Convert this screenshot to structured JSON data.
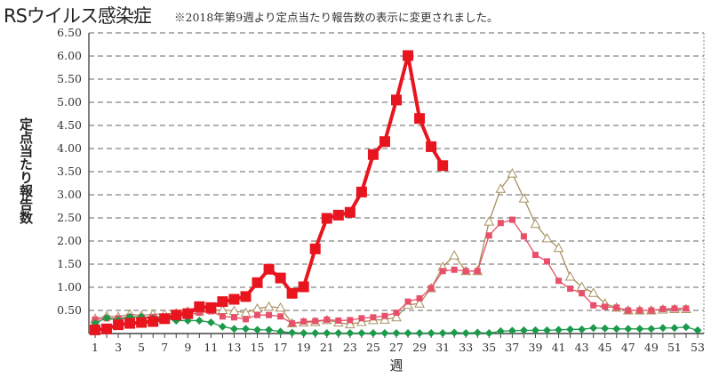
{
  "chart_data": {
    "type": "line",
    "title": "RSウイルス感染症",
    "subtitle": "※2018年第9週より定点当たり報告数の表示に変更されました。",
    "xlabel": "週",
    "ylabel": "定点当たり報告数",
    "xlim": [
      1,
      53
    ],
    "ylim": [
      0,
      6.5
    ],
    "y_ticks": [
      "0.50",
      "1.00",
      "1.50",
      "2.00",
      "2.50",
      "3.00",
      "3.50",
      "4.00",
      "4.50",
      "5.00",
      "5.50",
      "6.00",
      "6.50"
    ],
    "x_ticks": [
      "1",
      "3",
      "5",
      "7",
      "9",
      "11",
      "13",
      "15",
      "17",
      "19",
      "21",
      "23",
      "25",
      "27",
      "29",
      "31",
      "33",
      "35",
      "37",
      "39",
      "41",
      "43",
      "45",
      "47",
      "49",
      "51",
      "53"
    ],
    "grid": "horizontal dashed",
    "series": [
      {
        "style": "tan-triangle",
        "color": "#a89060",
        "values": [
          0.32,
          0.38,
          0.36,
          0.42,
          0.39,
          0.42,
          0.42,
          0.44,
          0.48,
          0.48,
          0.51,
          0.51,
          0.49,
          0.45,
          0.54,
          0.58,
          0.56,
          0.22,
          0.24,
          0.25,
          0.29,
          0.24,
          0.2,
          0.25,
          0.29,
          0.3,
          0.35,
          0.62,
          0.65,
          0.98,
          1.44,
          1.69,
          1.35,
          1.35,
          2.42,
          3.13,
          3.46,
          2.92,
          2.37,
          2.06,
          1.85,
          1.23,
          1.01,
          0.88,
          0.65,
          0.56,
          0.5,
          0.5,
          0.5,
          0.52,
          0.53,
          0.53
        ]
      },
      {
        "style": "pink-square",
        "color": "#e8506a",
        "values": [
          0.3,
          0.33,
          0.33,
          0.36,
          0.35,
          0.36,
          0.37,
          0.4,
          0.42,
          0.45,
          0.48,
          0.37,
          0.35,
          0.31,
          0.4,
          0.4,
          0.37,
          0.22,
          0.26,
          0.27,
          0.3,
          0.28,
          0.29,
          0.33,
          0.35,
          0.38,
          0.45,
          0.69,
          0.76,
          0.98,
          1.35,
          1.38,
          1.35,
          1.35,
          2.12,
          2.39,
          2.46,
          2.1,
          1.7,
          1.56,
          1.14,
          0.97,
          0.87,
          0.61,
          0.58,
          0.56,
          0.5,
          0.5,
          0.5,
          0.53,
          0.54,
          0.54
        ]
      },
      {
        "style": "green-diamond",
        "color": "#1a9a4a",
        "values": [
          0.22,
          0.34,
          0.29,
          0.36,
          0.36,
          0.33,
          0.34,
          0.28,
          0.28,
          0.28,
          0.24,
          0.15,
          0.1,
          0.1,
          0.08,
          0.08,
          0.04,
          0.02,
          0.01,
          0.01,
          0.01,
          0.01,
          0.01,
          0.01,
          0.01,
          0.01,
          0.01,
          0.01,
          0.01,
          0.01,
          0.01,
          0.02,
          0.01,
          0.02,
          0.01,
          0.05,
          0.06,
          0.07,
          0.07,
          0.07,
          0.08,
          0.09,
          0.09,
          0.12,
          0.11,
          0.1,
          0.1,
          0.1,
          0.1,
          0.12,
          0.12,
          0.14,
          0.07
        ]
      },
      {
        "style": "red-bold-square",
        "color": "#e8141e",
        "values": [
          0.08,
          0.1,
          0.19,
          0.22,
          0.24,
          0.26,
          0.32,
          0.4,
          0.43,
          0.58,
          0.56,
          0.69,
          0.74,
          0.8,
          1.1,
          1.39,
          1.2,
          0.87,
          1.01,
          1.83,
          2.49,
          2.56,
          2.62,
          3.06,
          3.87,
          4.15,
          5.05,
          6.01,
          4.65,
          4.04,
          3.63
        ]
      }
    ]
  }
}
